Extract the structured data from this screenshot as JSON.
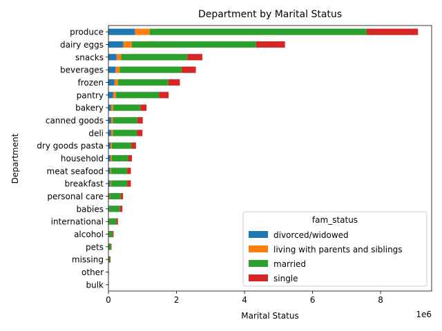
{
  "chart_data": {
    "type": "bar",
    "orientation": "horizontal",
    "stacked": true,
    "title": "Department by Marital Status",
    "xlabel": "Marital Status",
    "ylabel": "Department",
    "x_scale_label": "1e6",
    "xlim": [
      0,
      9.5
    ],
    "x_ticks": [
      0,
      2,
      4,
      6,
      8
    ],
    "grid": false,
    "legend": {
      "title": "fam_status",
      "placement": "lower-right"
    },
    "categories": [
      "produce",
      "dairy eggs",
      "snacks",
      "beverages",
      "frozen",
      "pantry",
      "bakery",
      "canned goods",
      "deli",
      "dry goods pasta",
      "household",
      "meat seafood",
      "breakfast",
      "personal care",
      "babies",
      "international",
      "alcohol",
      "pets",
      "missing",
      "other",
      "bulk"
    ],
    "series": [
      {
        "name": "divorced/widowed",
        "color": "#1f77b4",
        "values": [
          0.78,
          0.44,
          0.24,
          0.21,
          0.18,
          0.14,
          0.08,
          0.08,
          0.08,
          0.06,
          0.06,
          0.05,
          0.05,
          0.03,
          0.03,
          0.02,
          0.01,
          0.01,
          0.01,
          0.0,
          0.0
        ]
      },
      {
        "name": "living with parents and siblings",
        "color": "#ff7f0e",
        "values": [
          0.43,
          0.25,
          0.13,
          0.12,
          0.1,
          0.08,
          0.06,
          0.05,
          0.05,
          0.04,
          0.04,
          0.03,
          0.03,
          0.02,
          0.01,
          0.01,
          0.01,
          0.0,
          0.0,
          0.0,
          0.0
        ]
      },
      {
        "name": "married",
        "color": "#2ca02c",
        "values": [
          6.38,
          3.65,
          1.95,
          1.82,
          1.48,
          1.27,
          0.8,
          0.72,
          0.71,
          0.58,
          0.48,
          0.47,
          0.47,
          0.31,
          0.3,
          0.2,
          0.1,
          0.06,
          0.03,
          0.01,
          0.01
        ]
      },
      {
        "name": "single",
        "color": "#d62728",
        "values": [
          1.51,
          0.85,
          0.44,
          0.42,
          0.34,
          0.28,
          0.18,
          0.16,
          0.16,
          0.13,
          0.11,
          0.11,
          0.11,
          0.07,
          0.07,
          0.05,
          0.03,
          0.02,
          0.02,
          0.0,
          0.0
        ]
      }
    ]
  }
}
